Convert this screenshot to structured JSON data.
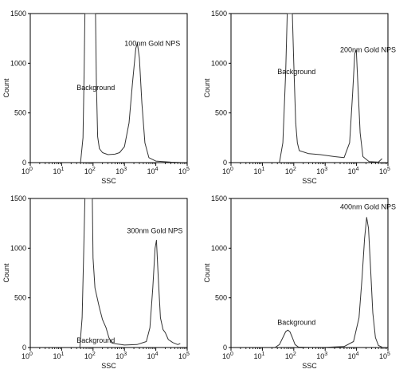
{
  "chart_data": [
    {
      "type": "line",
      "xlabel": "SSC",
      "ylabel": "Count",
      "xscale": "log",
      "xlim": [
        1,
        100000
      ],
      "ylim": [
        0,
        1500
      ],
      "xticks": [
        {
          "base": "10",
          "exp": "0"
        },
        {
          "base": "10",
          "exp": "1"
        },
        {
          "base": "10",
          "exp": "2"
        },
        {
          "base": "10",
          "exp": "3"
        },
        {
          "base": "10",
          "exp": "4"
        },
        {
          "base": "10",
          "exp": "5"
        }
      ],
      "yticks": [
        "0",
        "500",
        "1000",
        "1500"
      ],
      "grid": false,
      "annotations": [
        {
          "text": "100nm Gold NPS",
          "x": 1000,
          "y": 1175
        },
        {
          "text": "Background",
          "x": 30,
          "y": 730
        }
      ],
      "series": [
        {
          "points": [
            [
              40,
              0
            ],
            [
              48,
              250
            ],
            [
              52,
              900
            ],
            [
              55,
              1500
            ],
            [
              120,
              1500
            ],
            [
              128,
              800
            ],
            [
              140,
              260
            ],
            [
              160,
              140
            ],
            [
              200,
              100
            ],
            [
              300,
              80
            ],
            [
              500,
              85
            ],
            [
              700,
              100
            ],
            [
              1000,
              160
            ],
            [
              1400,
              400
            ],
            [
              1800,
              800
            ],
            [
              2300,
              1150
            ],
            [
              2600,
              1200
            ],
            [
              3000,
              1050
            ],
            [
              3600,
              600
            ],
            [
              4500,
              200
            ],
            [
              6000,
              50
            ],
            [
              10000,
              15
            ],
            [
              30000,
              5
            ],
            [
              60000,
              2
            ]
          ]
        }
      ]
    },
    {
      "type": "line",
      "xlabel": "SSC",
      "ylabel": "Count",
      "xscale": "log",
      "xlim": [
        1,
        100000
      ],
      "ylim": [
        0,
        1500
      ],
      "xticks": [
        {
          "base": "10",
          "exp": "0"
        },
        {
          "base": "10",
          "exp": "1"
        },
        {
          "base": "10",
          "exp": "2"
        },
        {
          "base": "10",
          "exp": "3"
        },
        {
          "base": "10",
          "exp": "4"
        },
        {
          "base": "10",
          "exp": "5"
        }
      ],
      "yticks": [
        "0",
        "500",
        "1000",
        "1500"
      ],
      "grid": false,
      "annotations": [
        {
          "text": "200nm Gold NPS",
          "x": 3000,
          "y": 1110
        },
        {
          "text": "Background",
          "x": 30,
          "y": 890
        }
      ],
      "series": [
        {
          "points": [
            [
              35,
              0
            ],
            [
              45,
              200
            ],
            [
              55,
              900
            ],
            [
              62,
              1500
            ],
            [
              90,
              1500
            ],
            [
              100,
              1000
            ],
            [
              115,
              400
            ],
            [
              130,
              200
            ],
            [
              150,
              120
            ],
            [
              300,
              90
            ],
            [
              700,
              80
            ],
            [
              2000,
              60
            ],
            [
              4000,
              50
            ],
            [
              6000,
              200
            ],
            [
              7500,
              700
            ],
            [
              8800,
              1100
            ],
            [
              9800,
              1130
            ],
            [
              11000,
              800
            ],
            [
              13000,
              300
            ],
            [
              16000,
              60
            ],
            [
              25000,
              10
            ],
            [
              50000,
              5
            ],
            [
              65000,
              40
            ]
          ]
        }
      ]
    },
    {
      "type": "line",
      "xlabel": "SSC",
      "ylabel": "Count",
      "xscale": "log",
      "xlim": [
        1,
        100000
      ],
      "ylim": [
        0,
        1500
      ],
      "xticks": [
        {
          "base": "10",
          "exp": "0"
        },
        {
          "base": "10",
          "exp": "1"
        },
        {
          "base": "10",
          "exp": "2"
        },
        {
          "base": "10",
          "exp": "3"
        },
        {
          "base": "10",
          "exp": "4"
        },
        {
          "base": "10",
          "exp": "5"
        }
      ],
      "yticks": [
        "0",
        "500",
        "1000",
        "1500"
      ],
      "grid": false,
      "annotations": [
        {
          "text": "300nm Gold NPS",
          "x": 1200,
          "y": 1150
        },
        {
          "text": "Background",
          "x": 30,
          "y": 50
        }
      ],
      "series": [
        {
          "points": [
            [
              38,
              0
            ],
            [
              45,
              300
            ],
            [
              50,
              900
            ],
            [
              55,
              1500
            ],
            [
              95,
              1500
            ],
            [
              100,
              900
            ],
            [
              115,
              600
            ],
            [
              160,
              400
            ],
            [
              200,
              280
            ],
            [
              260,
              200
            ],
            [
              320,
              100
            ],
            [
              400,
              45
            ],
            [
              600,
              35
            ],
            [
              1000,
              25
            ],
            [
              2500,
              30
            ],
            [
              5000,
              60
            ],
            [
              6500,
              200
            ],
            [
              8000,
              600
            ],
            [
              9500,
              1000
            ],
            [
              10500,
              1080
            ],
            [
              12000,
              700
            ],
            [
              14000,
              300
            ],
            [
              17000,
              180
            ],
            [
              20000,
              150
            ],
            [
              25000,
              80
            ],
            [
              35000,
              50
            ],
            [
              50000,
              30
            ],
            [
              60000,
              40
            ]
          ]
        }
      ]
    },
    {
      "type": "line",
      "xlabel": "SSC",
      "ylabel": "Count",
      "xscale": "log",
      "xlim": [
        1,
        100000
      ],
      "ylim": [
        0,
        1500
      ],
      "xticks": [
        {
          "base": "10",
          "exp": "0"
        },
        {
          "base": "10",
          "exp": "1"
        },
        {
          "base": "10",
          "exp": "2"
        },
        {
          "base": "10",
          "exp": "3"
        },
        {
          "base": "10",
          "exp": "4"
        },
        {
          "base": "10",
          "exp": "5"
        }
      ],
      "yticks": [
        "0",
        "500",
        "1000",
        "1500"
      ],
      "grid": false,
      "annotations": [
        {
          "text": "400nm Gold NPS",
          "x": 3000,
          "y": 1390
        },
        {
          "text": "Background",
          "x": 30,
          "y": 230
        }
      ],
      "series": [
        {
          "points": [
            [
              25,
              0
            ],
            [
              35,
              30
            ],
            [
              45,
              100
            ],
            [
              55,
              160
            ],
            [
              65,
              175
            ],
            [
              75,
              160
            ],
            [
              90,
              100
            ],
            [
              110,
              30
            ],
            [
              140,
              5
            ],
            [
              300,
              2
            ],
            [
              1000,
              2
            ],
            [
              4000,
              10
            ],
            [
              8000,
              60
            ],
            [
              12000,
              300
            ],
            [
              15000,
              700
            ],
            [
              18000,
              1100
            ],
            [
              21000,
              1310
            ],
            [
              24000,
              1200
            ],
            [
              28000,
              800
            ],
            [
              33000,
              350
            ],
            [
              40000,
              100
            ],
            [
              50000,
              20
            ],
            [
              65000,
              5
            ]
          ]
        }
      ]
    }
  ]
}
